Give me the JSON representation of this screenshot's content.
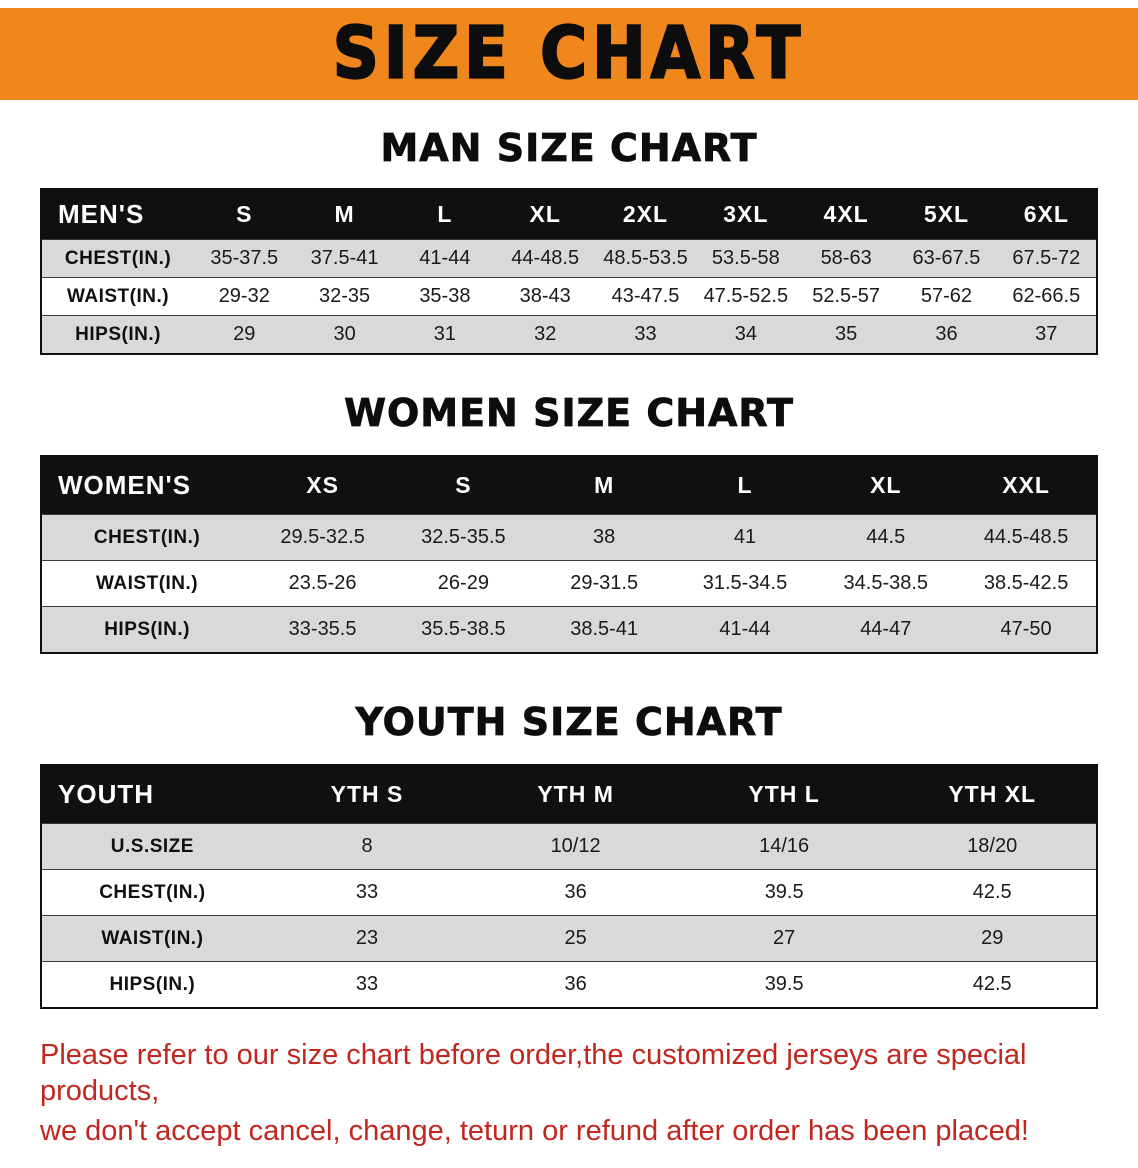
{
  "banner": {
    "title": "SIZE CHART"
  },
  "colors": {
    "banner_bg": "#F0871C",
    "table_header_bg": "#101010",
    "row_alt": "#D9D9D9",
    "footer_text": "#C2271F"
  },
  "sections": [
    {
      "heading": "MAN SIZE CHART",
      "table": {
        "header": [
          "MEN'S",
          "S",
          "M",
          "L",
          "XL",
          "2XL",
          "3XL",
          "4XL",
          "5XL",
          "6XL"
        ],
        "rows": [
          {
            "label": "CHEST(IN.)",
            "values": [
              "35-37.5",
              "37.5-41",
              "41-44",
              "44-48.5",
              "48.5-53.5",
              "53.5-58",
              "58-63",
              "63-67.5",
              "67.5-72"
            ]
          },
          {
            "label": "WAIST(IN.)",
            "values": [
              "29-32",
              "32-35",
              "35-38",
              "38-43",
              "43-47.5",
              "47.5-52.5",
              "52.5-57",
              "57-62",
              "62-66.5"
            ]
          },
          {
            "label": "HIPS(IN.)",
            "values": [
              "29",
              "30",
              "31",
              "32",
              "33",
              "34",
              "35",
              "36",
              "37"
            ]
          }
        ]
      }
    },
    {
      "heading": "WOMEN SIZE CHART",
      "table": {
        "header": [
          "WOMEN'S",
          "XS",
          "S",
          "M",
          "L",
          "XL",
          "XXL"
        ],
        "rows": [
          {
            "label": "CHEST(IN.)",
            "values": [
              "29.5-32.5",
              "32.5-35.5",
              "38",
              "41",
              "44.5",
              "44.5-48.5"
            ]
          },
          {
            "label": "WAIST(IN.)",
            "values": [
              "23.5-26",
              "26-29",
              "29-31.5",
              "31.5-34.5",
              "34.5-38.5",
              "38.5-42.5"
            ]
          },
          {
            "label": "HIPS(IN.)",
            "values": [
              "33-35.5",
              "35.5-38.5",
              "38.5-41",
              "41-44",
              "44-47",
              "47-50"
            ]
          }
        ]
      }
    },
    {
      "heading": "YOUTH SIZE CHART",
      "table": {
        "header": [
          "YOUTH",
          "YTH S",
          "YTH M",
          "YTH L",
          "YTH XL"
        ],
        "rows": [
          {
            "label": "U.S.SIZE",
            "values": [
              "8",
              "10/12",
              "14/16",
              "18/20"
            ]
          },
          {
            "label": "CHEST(IN.)",
            "values": [
              "33",
              "36",
              "39.5",
              "42.5"
            ]
          },
          {
            "label": "WAIST(IN.)",
            "values": [
              "23",
              "25",
              "27",
              "29"
            ]
          },
          {
            "label": "HIPS(IN.)",
            "values": [
              "33",
              "36",
              "39.5",
              "42.5"
            ]
          }
        ]
      }
    }
  ],
  "footer": {
    "lines": [
      "Please refer to our size chart before order,the customized jerseys are special products,",
      "we don't accept cancel, change, teturn or refund after order has been placed!"
    ]
  }
}
